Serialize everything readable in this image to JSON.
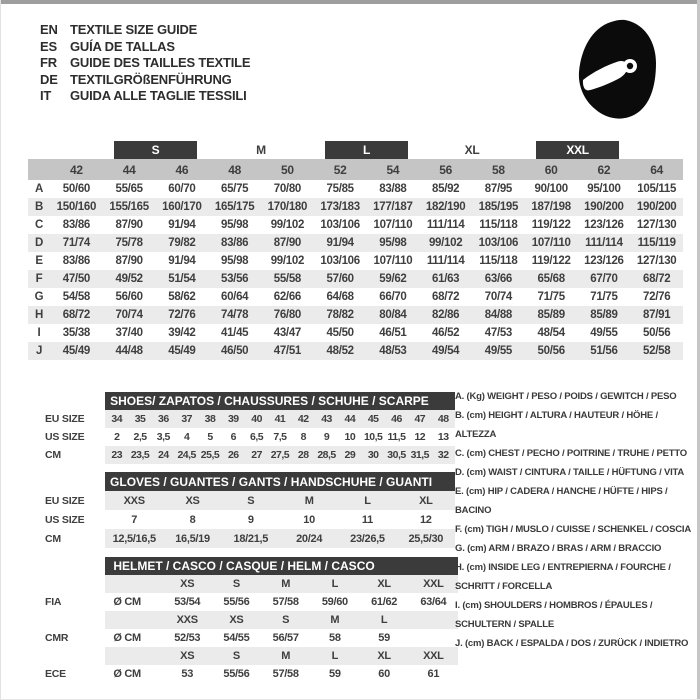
{
  "header": {
    "languages": [
      {
        "code": "EN",
        "label": "TEXTILE SIZE GUIDE"
      },
      {
        "code": "ES",
        "label": "GUÍA DE TALLAS"
      },
      {
        "code": "FR",
        "label": "GUIDE DES TAILLES TEXTILE"
      },
      {
        "code": "DE",
        "label": "TEXTILGRÖßENFÜHRUNG"
      },
      {
        "code": "IT",
        "label": "GUIDA ALLE TAGLIE TESSILI"
      }
    ],
    "helmet_icon": "racing-helmet-icon"
  },
  "colors": {
    "dark_bar": "#3a3a3a",
    "header_gray": "#c5c5c5",
    "stripe_gray": "#ebebeb",
    "text": "#3f3f3f",
    "icon_black": "#0b0b0b"
  },
  "main_table": {
    "size_groups": [
      {
        "label": "",
        "span": 1,
        "dark": false
      },
      {
        "label": "S",
        "span": 2,
        "dark": true
      },
      {
        "label": "M",
        "span": 2,
        "dark": false
      },
      {
        "label": "L",
        "span": 2,
        "dark": true
      },
      {
        "label": "XL",
        "span": 2,
        "dark": false
      },
      {
        "label": "XXL",
        "span": 2,
        "dark": true
      },
      {
        "label": "",
        "span": 1,
        "dark": false
      }
    ],
    "sizes": [
      "42",
      "44",
      "46",
      "48",
      "50",
      "52",
      "54",
      "56",
      "58",
      "60",
      "62",
      "64"
    ],
    "rows": [
      {
        "label": "A",
        "values": [
          "50/60",
          "55/65",
          "60/70",
          "65/75",
          "70/80",
          "75/85",
          "83/88",
          "85/92",
          "87/95",
          "90/100",
          "95/100",
          "105/115"
        ]
      },
      {
        "label": "B",
        "values": [
          "150/160",
          "155/165",
          "160/170",
          "165/175",
          "170/180",
          "173/183",
          "177/187",
          "182/190",
          "185/195",
          "187/198",
          "190/200",
          "190/200"
        ]
      },
      {
        "label": "C",
        "values": [
          "83/86",
          "87/90",
          "91/94",
          "95/98",
          "99/102",
          "103/106",
          "107/110",
          "111/114",
          "115/118",
          "119/122",
          "123/126",
          "127/130"
        ]
      },
      {
        "label": "D",
        "values": [
          "71/74",
          "75/78",
          "79/82",
          "83/86",
          "87/90",
          "91/94",
          "95/98",
          "99/102",
          "103/106",
          "107/110",
          "111/114",
          "115/119"
        ]
      },
      {
        "label": "E",
        "values": [
          "83/86",
          "87/90",
          "91/94",
          "95/98",
          "99/102",
          "103/106",
          "107/110",
          "111/114",
          "115/118",
          "119/122",
          "123/126",
          "127/130"
        ]
      },
      {
        "label": "F",
        "values": [
          "47/50",
          "49/52",
          "51/54",
          "53/56",
          "55/58",
          "57/60",
          "59/62",
          "61/63",
          "63/66",
          "65/68",
          "67/70",
          "68/72"
        ]
      },
      {
        "label": "G",
        "values": [
          "54/58",
          "56/60",
          "58/62",
          "60/64",
          "62/66",
          "64/68",
          "66/70",
          "68/72",
          "70/74",
          "71/75",
          "71/75",
          "72/76"
        ]
      },
      {
        "label": "H",
        "values": [
          "68/72",
          "70/74",
          "72/76",
          "74/78",
          "76/80",
          "78/82",
          "80/84",
          "82/86",
          "84/88",
          "85/89",
          "85/89",
          "87/91"
        ]
      },
      {
        "label": "I",
        "values": [
          "35/38",
          "37/40",
          "39/42",
          "41/45",
          "43/47",
          "45/50",
          "46/51",
          "46/52",
          "47/53",
          "48/54",
          "49/55",
          "50/56"
        ]
      },
      {
        "label": "J",
        "values": [
          "45/49",
          "44/48",
          "45/49",
          "46/50",
          "47/51",
          "48/52",
          "48/53",
          "49/54",
          "49/55",
          "50/56",
          "51/56",
          "52/58"
        ]
      }
    ]
  },
  "shoes": {
    "title": "SHOES/ ZAPATOS / CHAUSSURES / SCHUHE / SCARPE",
    "rows": [
      {
        "label": "EU SIZE",
        "shaded": true,
        "cells": [
          "34",
          "35",
          "36",
          "37",
          "38",
          "39",
          "40",
          "41",
          "42",
          "43",
          "44",
          "45",
          "46",
          "47",
          "48"
        ]
      },
      {
        "label": "US SIZE",
        "shaded": false,
        "cells": [
          "2",
          "2,5",
          "3,5",
          "4",
          "5",
          "6",
          "6,5",
          "7,5",
          "8",
          "9",
          "10",
          "10,5",
          "11,5",
          "12",
          "13"
        ]
      },
      {
        "label": "CM",
        "shaded": true,
        "cells": [
          "23",
          "23,5",
          "24",
          "24,5",
          "25,5",
          "26",
          "27",
          "27,5",
          "28",
          "28,5",
          "29",
          "30",
          "30,5",
          "31,5",
          "32"
        ]
      }
    ]
  },
  "gloves": {
    "title": "GLOVES / GUANTES / GANTS / HANDSCHUHE / GUANTI",
    "rows": [
      {
        "label": "EU SIZE",
        "shaded": true,
        "cells": [
          "XXS",
          "XS",
          "S",
          "M",
          "L",
          "XL"
        ]
      },
      {
        "label": "US SIZE",
        "shaded": false,
        "cells": [
          "7",
          "8",
          "9",
          "10",
          "11",
          "12"
        ]
      },
      {
        "label": "CM",
        "shaded": true,
        "cells": [
          "12,5/16,5",
          "16,5/19",
          "18/21,5",
          "20/24",
          "23/26,5",
          "25,5/30"
        ]
      }
    ]
  },
  "helmet": {
    "title": "HELMET / CASCO / CASQUE / HELM / CASCO",
    "rows": [
      {
        "label": "",
        "unit": "",
        "shaded": true,
        "cells": [
          "XS",
          "S",
          "M",
          "L",
          "XL",
          "XXL"
        ]
      },
      {
        "label": "FIA",
        "unit": "Ø CM",
        "shaded": false,
        "cells": [
          "53/54",
          "55/56",
          "57/58",
          "59/60",
          "61/62",
          "63/64"
        ]
      },
      {
        "label": "",
        "unit": "",
        "shaded": true,
        "cells": [
          "XXS",
          "XS",
          "S",
          "M",
          "L",
          ""
        ]
      },
      {
        "label": "CMR",
        "unit": "Ø CM",
        "shaded": false,
        "cells": [
          "52/53",
          "54/55",
          "56/57",
          "58",
          "59",
          ""
        ]
      },
      {
        "label": "",
        "unit": "",
        "shaded": true,
        "cells": [
          "XS",
          "S",
          "M",
          "L",
          "XL",
          "XXL"
        ]
      },
      {
        "label": "ECE",
        "unit": "Ø CM",
        "shaded": false,
        "cells": [
          "53",
          "55/56",
          "57/58",
          "59",
          "60",
          "61"
        ]
      }
    ]
  },
  "legend": {
    "lines": [
      "A. (Kg) WEIGHT / PESO / POIDS / GEWITCH / PESO",
      "B. (cm) HEIGHT / ALTURA / HAUTEUR / HÖHE / ALTEZZA",
      "C. (cm) CHEST / PECHO / POITRINE / TRUHE / PETTO",
      "D. (cm) WAIST / CINTURA / TAILLE / HÜFTUNG / VITA",
      "E. (cm) HIP / CADERA / HANCHE / HÜFTE / HIPS / BACINO",
      "F. (cm) TIGH / MUSLO / CUISSE / SCHENKEL / COSCIA",
      "G. (cm) ARM / BRAZO / BRAS / ARM / BRACCIO",
      "H. (cm) INSIDE LEG / ENTREPIERNA / FOURCHE / SCHRITT / FORCELLA",
      "I. (cm) SHOULDERS / HOMBROS / ÉPAULES / SCHULTERN / SPALLE",
      "J. (cm) BACK / ESPALDA / DOS / ZURÜCK / INDIETRO"
    ]
  }
}
